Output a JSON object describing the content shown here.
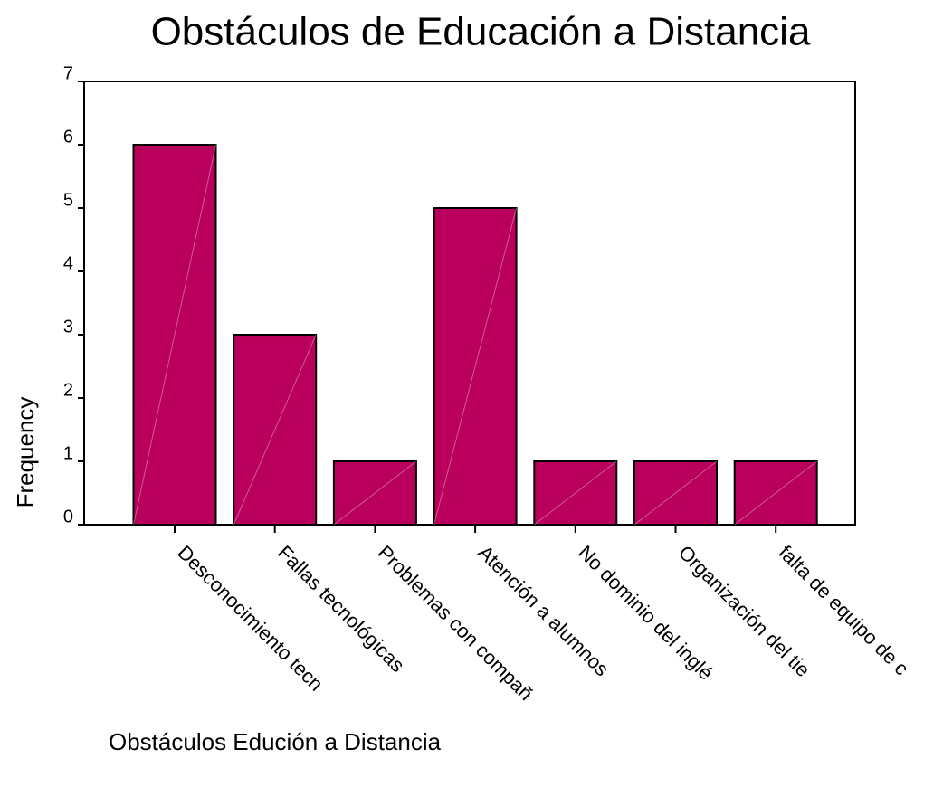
{
  "chart_data": {
    "type": "bar",
    "title": "Obstáculos de Educación a Distancia",
    "x_label": "Obstáculos Edución a Distancia",
    "y_label": "Frequency",
    "categories": [
      "Desconocimiento tecn",
      "Fallas tecnológicas",
      "Problemas con compañ",
      "Atención a alumnos",
      "No dominio del inglé",
      "Organización del tie",
      "falta de equipo de c"
    ],
    "values": [
      6,
      3,
      1,
      5,
      1,
      1,
      1
    ],
    "color": "#b8005c",
    "ylim": [
      0,
      7
    ],
    "yticks": [
      0,
      1,
      2,
      3,
      4,
      5,
      6,
      7
    ],
    "grid": false
  }
}
